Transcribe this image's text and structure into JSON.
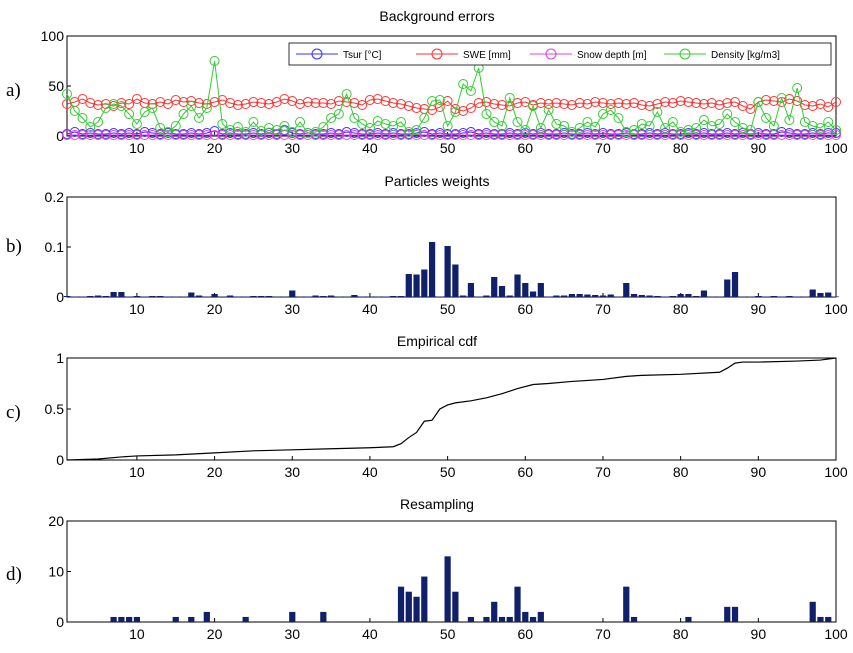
{
  "chart_data": [
    {
      "type": "line",
      "panel_label": "a)",
      "title": "Background errors",
      "xlim": [
        1,
        100
      ],
      "ylim": [
        0,
        100
      ],
      "xticks": [
        10,
        20,
        30,
        40,
        50,
        60,
        70,
        80,
        90,
        100
      ],
      "yticks": [
        0,
        50,
        100
      ],
      "legend_placement": "top-right",
      "series": [
        {
          "name": "Tsur [°C]",
          "color": "#3333ff",
          "marker": "circle",
          "values": [
            2,
            4,
            2,
            3,
            2,
            2,
            3,
            2,
            3,
            2,
            4,
            3,
            2,
            3,
            2,
            2,
            3,
            2,
            3,
            5,
            2,
            3,
            2,
            2,
            3,
            2,
            3,
            2,
            6,
            3,
            2,
            3,
            2,
            2,
            3,
            2,
            4,
            3,
            2,
            2,
            3,
            2,
            3,
            2,
            2,
            3,
            4,
            2,
            3,
            2,
            2,
            3,
            4,
            2,
            3,
            2,
            2,
            3,
            2,
            3,
            2,
            3,
            2,
            2,
            3,
            2,
            2,
            3,
            2,
            3,
            2,
            2,
            3,
            2,
            2,
            3,
            2,
            3,
            2,
            2,
            3,
            2,
            3,
            2,
            2,
            3,
            2,
            3,
            2,
            3,
            2,
            2,
            4,
            3,
            2,
            2,
            3,
            2,
            3,
            3
          ]
        },
        {
          "name": "SWE [mm]",
          "color": "#ff3333",
          "marker": "circle",
          "values": [
            32,
            34,
            37,
            33,
            31,
            32,
            30,
            33,
            32,
            37,
            33,
            32,
            34,
            32,
            36,
            34,
            35,
            33,
            32,
            34,
            36,
            33,
            31,
            32,
            34,
            33,
            32,
            34,
            37,
            35,
            32,
            34,
            33,
            33,
            32,
            35,
            34,
            33,
            31,
            36,
            37,
            35,
            33,
            32,
            30,
            28,
            27,
            26,
            29,
            35,
            27,
            25,
            28,
            33,
            34,
            32,
            31,
            30,
            33,
            34,
            31,
            33,
            32,
            33,
            32,
            31,
            33,
            32,
            34,
            33,
            32,
            33,
            32,
            33,
            31,
            30,
            32,
            34,
            33,
            35,
            34,
            33,
            32,
            33,
            31,
            33,
            34,
            30,
            27,
            34,
            36,
            35,
            34,
            37,
            35,
            31,
            30,
            32,
            29,
            34
          ]
        },
        {
          "name": "Snow depth [m]",
          "color": "#e040e0",
          "marker": "circle",
          "values": [
            1,
            1,
            1,
            1,
            1,
            1,
            1,
            1,
            1,
            1,
            1,
            1,
            1,
            1,
            1,
            1,
            1,
            1,
            1,
            1,
            1,
            1,
            1,
            1,
            1,
            1,
            1,
            1,
            1,
            1,
            1,
            1,
            1,
            1,
            1,
            1,
            1,
            1,
            1,
            1,
            1,
            1,
            1,
            1,
            1,
            1,
            1,
            1,
            1,
            1,
            1,
            1,
            1,
            1,
            1,
            1,
            1,
            1,
            1,
            1,
            1,
            1,
            1,
            1,
            1,
            1,
            1,
            1,
            1,
            1,
            1,
            1,
            1,
            1,
            1,
            1,
            1,
            1,
            1,
            1,
            1,
            1,
            1,
            1,
            1,
            1,
            1,
            1,
            1,
            1,
            1,
            1,
            1,
            1,
            1,
            1,
            1,
            1,
            1,
            1
          ]
        },
        {
          "name": "Density [kg/m3]",
          "color": "#33cc33",
          "marker": "circle",
          "values": [
            42,
            25,
            18,
            9,
            14,
            28,
            32,
            30,
            22,
            12,
            24,
            28,
            8,
            4,
            10,
            22,
            30,
            18,
            28,
            75,
            12,
            6,
            9,
            4,
            14,
            5,
            8,
            6,
            10,
            4,
            14,
            3,
            4,
            9,
            18,
            22,
            42,
            18,
            12,
            8,
            15,
            12,
            10,
            14,
            4,
            6,
            18,
            35,
            36,
            10,
            24,
            52,
            45,
            68,
            22,
            14,
            10,
            38,
            14,
            6,
            30,
            8,
            26,
            12,
            10,
            4,
            8,
            14,
            9,
            22,
            26,
            18,
            4,
            6,
            12,
            10,
            24,
            8,
            14,
            4,
            6,
            8,
            16,
            10,
            12,
            22,
            14,
            8,
            6,
            34,
            18,
            10,
            38,
            16,
            48,
            14,
            10,
            8,
            14,
            6
          ]
        }
      ]
    },
    {
      "type": "bar",
      "panel_label": "b)",
      "title": "Particles weights",
      "xlim": [
        1,
        100
      ],
      "ylim": [
        0,
        0.2
      ],
      "xticks": [
        10,
        20,
        30,
        40,
        50,
        60,
        70,
        80,
        90,
        100
      ],
      "yticks": [
        0,
        0.1,
        0.2
      ],
      "color": "#10206a",
      "values": [
        0.002,
        0.001,
        0.001,
        0.002,
        0.003,
        0.002,
        0.01,
        0.01,
        0.001,
        0.002,
        0.001,
        0.002,
        0.002,
        0.001,
        0.001,
        0.001,
        0.009,
        0.003,
        0.001,
        0.006,
        0.001,
        0.003,
        0.001,
        0.001,
        0.002,
        0.002,
        0.002,
        0.001,
        0.001,
        0.013,
        0.001,
        0.001,
        0.003,
        0.002,
        0.003,
        0.001,
        0.001,
        0.004,
        0.001,
        0.001,
        0.001,
        0.001,
        0.002,
        0.002,
        0.046,
        0.045,
        0.055,
        0.11,
        0.001,
        0.102,
        0.065,
        0.003,
        0.028,
        0.001,
        0.003,
        0.04,
        0.022,
        0.003,
        0.045,
        0.028,
        0.011,
        0.028,
        0.001,
        0.003,
        0.003,
        0.006,
        0.006,
        0.005,
        0.004,
        0.003,
        0.005,
        0.001,
        0.028,
        0.006,
        0.004,
        0.003,
        0.002,
        0.001,
        0.002,
        0.006,
        0.006,
        0.002,
        0.013,
        0.001,
        0.001,
        0.035,
        0.05,
        0.001,
        0.001,
        0.002,
        0.001,
        0.002,
        0.001,
        0.002,
        0.001,
        0.001,
        0.015,
        0.008,
        0.009,
        0.001
      ]
    },
    {
      "type": "line",
      "panel_label": "c)",
      "title": "Empirical cdf",
      "xlim": [
        1,
        100
      ],
      "ylim": [
        0,
        1
      ],
      "xticks": [
        10,
        20,
        30,
        40,
        50,
        60,
        70,
        80,
        90,
        100
      ],
      "yticks": [
        0,
        0.5,
        1
      ],
      "color": "#000000",
      "x": [
        1,
        5,
        8,
        10,
        15,
        20,
        25,
        30,
        35,
        40,
        43,
        44,
        45,
        46,
        47,
        48,
        49,
        50,
        51,
        53,
        55,
        57,
        59,
        61,
        63,
        66,
        70,
        73,
        75,
        80,
        85,
        86,
        87,
        88,
        90,
        95,
        98,
        100
      ],
      "values": [
        0,
        0.01,
        0.03,
        0.04,
        0.05,
        0.07,
        0.09,
        0.1,
        0.11,
        0.12,
        0.13,
        0.16,
        0.22,
        0.27,
        0.38,
        0.39,
        0.5,
        0.54,
        0.56,
        0.58,
        0.61,
        0.65,
        0.7,
        0.74,
        0.75,
        0.77,
        0.79,
        0.82,
        0.83,
        0.84,
        0.86,
        0.9,
        0.95,
        0.96,
        0.96,
        0.97,
        0.98,
        1.0
      ]
    },
    {
      "type": "bar",
      "panel_label": "d)",
      "title": "Resampling",
      "xlim": [
        1,
        100
      ],
      "ylim": [
        0,
        20
      ],
      "xticks": [
        10,
        20,
        30,
        40,
        50,
        60,
        70,
        80,
        90,
        100
      ],
      "yticks": [
        0,
        10,
        20
      ],
      "color": "#10206a",
      "values": [
        0,
        0,
        0,
        0,
        0,
        0,
        1,
        1,
        1,
        1,
        0,
        0,
        0,
        0,
        1,
        0,
        1,
        0,
        2,
        0,
        0,
        0,
        0,
        1,
        0,
        0,
        0,
        0,
        0,
        2,
        0,
        0,
        0,
        2,
        0,
        0,
        0,
        0,
        0,
        0,
        0,
        0,
        0,
        7,
        6,
        5,
        9,
        0,
        0,
        13,
        6,
        0,
        1,
        0,
        1,
        4,
        1,
        1,
        7,
        2,
        1,
        2,
        0,
        0,
        0,
        0,
        0,
        0,
        0,
        0,
        0,
        0,
        7,
        1,
        0,
        0,
        0,
        0,
        0,
        0,
        1,
        0,
        0,
        0,
        0,
        3,
        3,
        0,
        0,
        0,
        0,
        0,
        0,
        0,
        0,
        0,
        4,
        1,
        1,
        0
      ]
    }
  ]
}
